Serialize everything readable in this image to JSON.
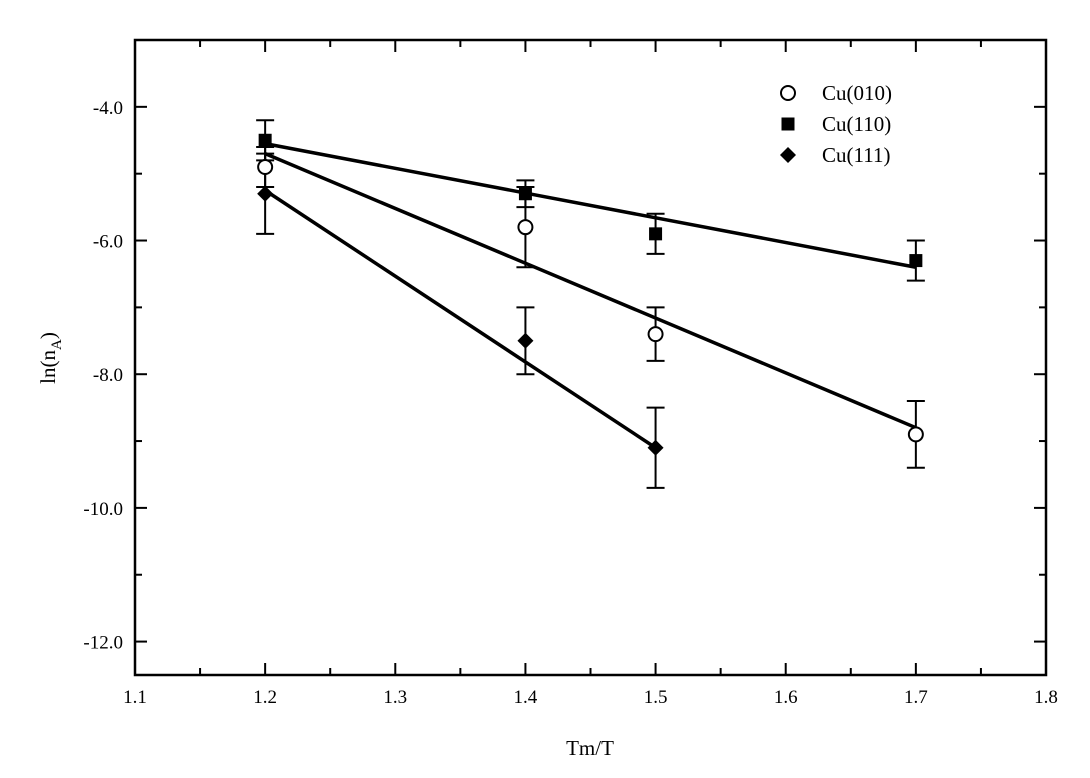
{
  "chart_data": {
    "type": "scatter",
    "xlabel": "Tm/T",
    "ylabel_base": "ln(n",
    "ylabel_sub": "A",
    "ylabel_close": ")",
    "xlim": [
      1.1,
      1.8
    ],
    "ylim": [
      -12.5,
      -3.0
    ],
    "x_ticks": [
      1.1,
      1.2,
      1.3,
      1.4,
      1.5,
      1.6,
      1.7,
      1.8
    ],
    "x_tick_labels": [
      "1.1",
      "1.2",
      "1.3",
      "1.4",
      "1.5",
      "1.6",
      "1.7",
      "1.8"
    ],
    "y_ticks": [
      -4.0,
      -6.0,
      -8.0,
      -10.0,
      -12.0
    ],
    "y_tick_labels": [
      "-4.0",
      "-6.0",
      "-8.0",
      "-10.0",
      "-12.0"
    ],
    "grid": false,
    "legend_position": "top-right",
    "series": [
      {
        "name": "Cu(010)",
        "marker": "open-circle",
        "x": [
          1.2,
          1.4,
          1.5,
          1.7
        ],
        "y": [
          -4.9,
          -5.8,
          -7.4,
          -8.9
        ],
        "err": [
          0.3,
          0.6,
          0.4,
          0.5
        ],
        "fit": {
          "x": [
            1.2,
            1.7
          ],
          "y": [
            -4.7,
            -8.8
          ]
        }
      },
      {
        "name": "Cu(110)",
        "marker": "filled-square",
        "x": [
          1.2,
          1.4,
          1.5,
          1.7
        ],
        "y": [
          -4.5,
          -5.3,
          -5.9,
          -6.3
        ],
        "err": [
          0.3,
          0.2,
          0.3,
          0.3
        ],
        "fit": {
          "x": [
            1.2,
            1.7
          ],
          "y": [
            -4.55,
            -6.4
          ]
        }
      },
      {
        "name": "Cu(111)",
        "marker": "filled-diamond",
        "x": [
          1.2,
          1.4,
          1.5
        ],
        "y": [
          -5.3,
          -7.5,
          -9.1
        ],
        "err": [
          0.6,
          0.5,
          0.6
        ],
        "fit": {
          "x": [
            1.2,
            1.5
          ],
          "y": [
            -5.25,
            -9.1
          ]
        }
      }
    ]
  }
}
